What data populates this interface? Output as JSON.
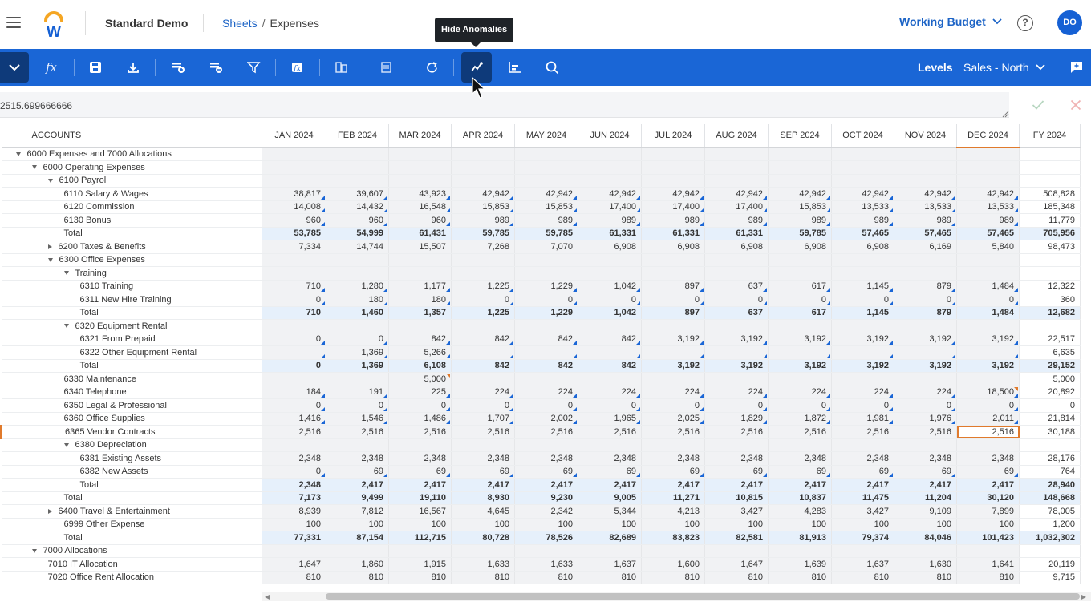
{
  "header": {
    "app_name": "Standard Demo",
    "breadcrumb_link": "Sheets",
    "breadcrumb_sep": "/",
    "breadcrumb_current": "Expenses",
    "tooltip": "Hide Anomalies",
    "budget": "Working Budget",
    "help": "?",
    "avatar": "DO"
  },
  "toolbar": {
    "fx_label": "fx",
    "levels_label": "Levels",
    "levels_value": "Sales - North",
    "active_button": "anomalies-icon"
  },
  "formula": {
    "value": "2515.699666666"
  },
  "grid": {
    "accounts_header": "ACCOUNTS",
    "months": [
      "JAN 2024",
      "FEB 2024",
      "MAR 2024",
      "APR 2024",
      "MAY 2024",
      "JUN 2024",
      "JUL 2024",
      "AUG 2024",
      "SEP 2024",
      "OCT 2024",
      "NOV 2024",
      "DEC 2024",
      "FY 2024"
    ],
    "rows": [
      {
        "label": "6000 Expenses and 7000 Allocations",
        "level": 0,
        "caret": "down",
        "values": []
      },
      {
        "label": "6000 Operating Expenses",
        "level": 1,
        "caret": "down",
        "values": []
      },
      {
        "label": "6100 Payroll",
        "level": 2,
        "caret": "down",
        "values": []
      },
      {
        "label": "6110 Salary & Wages",
        "level": 3,
        "values": [
          "38,817",
          "39,607",
          "43,923",
          "42,942",
          "42,942",
          "42,942",
          "42,942",
          "42,942",
          "42,942",
          "42,942",
          "42,942",
          "42,942",
          "508,828"
        ],
        "tri": true
      },
      {
        "label": "6120 Commission",
        "level": 3,
        "values": [
          "14,008",
          "14,432",
          "16,548",
          "15,853",
          "15,853",
          "17,400",
          "17,400",
          "17,400",
          "15,853",
          "13,533",
          "13,533",
          "13,533",
          "185,348"
        ],
        "tri": true
      },
      {
        "label": "6130 Bonus",
        "level": 3,
        "values": [
          "960",
          "960",
          "960",
          "989",
          "989",
          "989",
          "989",
          "989",
          "989",
          "989",
          "989",
          "989",
          "11,779"
        ],
        "tri": true
      },
      {
        "label": "Total",
        "level": 3,
        "total": true,
        "values": [
          "53,785",
          "54,999",
          "61,431",
          "59,785",
          "59,785",
          "61,331",
          "61,331",
          "61,331",
          "59,785",
          "57,465",
          "57,465",
          "57,465",
          "705,956"
        ]
      },
      {
        "label": "6200 Taxes & Benefits",
        "level": 2,
        "caret": "right",
        "values": [
          "7,334",
          "14,744",
          "15,507",
          "7,268",
          "7,070",
          "6,908",
          "6,908",
          "6,908",
          "6,908",
          "6,908",
          "6,169",
          "5,840",
          "98,473"
        ]
      },
      {
        "label": "6300 Office Expenses",
        "level": 2,
        "caret": "down",
        "values": []
      },
      {
        "label": "Training",
        "level": 3,
        "caret": "down",
        "values": []
      },
      {
        "label": "6310 Training",
        "level": 4,
        "values": [
          "710",
          "1,280",
          "1,177",
          "1,225",
          "1,229",
          "1,042",
          "897",
          "637",
          "617",
          "1,145",
          "879",
          "1,484",
          "12,322"
        ],
        "tri": true
      },
      {
        "label": "6311 New Hire Training",
        "level": 4,
        "values": [
          "0",
          "180",
          "180",
          "0",
          "0",
          "0",
          "0",
          "0",
          "0",
          "0",
          "0",
          "0",
          "360"
        ],
        "tri": true
      },
      {
        "label": "Total",
        "level": 4,
        "total": true,
        "values": [
          "710",
          "1,460",
          "1,357",
          "1,225",
          "1,229",
          "1,042",
          "897",
          "637",
          "617",
          "1,145",
          "879",
          "1,484",
          "12,682"
        ]
      },
      {
        "label": "6320 Equipment Rental",
        "level": 3,
        "caret": "down",
        "values": []
      },
      {
        "label": "6321 From Prepaid",
        "level": 4,
        "values": [
          "0",
          "0",
          "842",
          "842",
          "842",
          "842",
          "3,192",
          "3,192",
          "3,192",
          "3,192",
          "3,192",
          "3,192",
          "22,517"
        ],
        "tri": true
      },
      {
        "label": "6322 Other Equipment Rental",
        "level": 4,
        "values": [
          "",
          "1,369",
          "5,266",
          "",
          "",
          "",
          "",
          "",
          "",
          "",
          "",
          "",
          "6,635"
        ],
        "tri": true
      },
      {
        "label": "Total",
        "level": 4,
        "total": true,
        "values": [
          "0",
          "1,369",
          "6,108",
          "842",
          "842",
          "842",
          "3,192",
          "3,192",
          "3,192",
          "3,192",
          "3,192",
          "3,192",
          "29,152"
        ]
      },
      {
        "label": "6330 Maintenance",
        "level": 3,
        "values": [
          "",
          "",
          "5,000",
          "",
          "",
          "",
          "",
          "",
          "",
          "",
          "",
          "",
          "5,000"
        ],
        "orange": [
          2
        ]
      },
      {
        "label": "6340 Telephone",
        "level": 3,
        "values": [
          "184",
          "191",
          "225",
          "224",
          "224",
          "224",
          "224",
          "224",
          "224",
          "224",
          "224",
          "18,500",
          "20,892"
        ],
        "tri": true,
        "orange": [
          11
        ]
      },
      {
        "label": "6350 Legal & Professional",
        "level": 3,
        "values": [
          "0",
          "0",
          "0",
          "0",
          "0",
          "0",
          "0",
          "0",
          "0",
          "0",
          "0",
          "0",
          "0"
        ],
        "tri": true
      },
      {
        "label": "6360 Office Supplies",
        "level": 3,
        "values": [
          "1,416",
          "1,546",
          "1,486",
          "1,707",
          "2,002",
          "1,965",
          "2,025",
          "1,829",
          "1,872",
          "1,981",
          "1,976",
          "2,011",
          "21,814"
        ],
        "tri": true
      },
      {
        "label": "6365 Vendor Contracts",
        "level": 3,
        "highlight": true,
        "values": [
          "2,516",
          "2,516",
          "2,516",
          "2,516",
          "2,516",
          "2,516",
          "2,516",
          "2,516",
          "2,516",
          "2,516",
          "2,516",
          "2,516",
          "30,188"
        ]
      },
      {
        "label": "6380 Depreciation",
        "level": 3,
        "caret": "down",
        "values": []
      },
      {
        "label": "6381 Existing Assets",
        "level": 4,
        "values": [
          "2,348",
          "2,348",
          "2,348",
          "2,348",
          "2,348",
          "2,348",
          "2,348",
          "2,348",
          "2,348",
          "2,348",
          "2,348",
          "2,348",
          "28,176"
        ]
      },
      {
        "label": "6382 New Assets",
        "level": 4,
        "values": [
          "0",
          "69",
          "69",
          "69",
          "69",
          "69",
          "69",
          "69",
          "69",
          "69",
          "69",
          "69",
          "764"
        ],
        "tri": true
      },
      {
        "label": "Total",
        "level": 4,
        "total": true,
        "values": [
          "2,348",
          "2,417",
          "2,417",
          "2,417",
          "2,417",
          "2,417",
          "2,417",
          "2,417",
          "2,417",
          "2,417",
          "2,417",
          "2,417",
          "28,940"
        ]
      },
      {
        "label": "Total",
        "level": 3,
        "total": true,
        "values": [
          "7,173",
          "9,499",
          "19,110",
          "8,930",
          "9,230",
          "9,005",
          "11,271",
          "10,815",
          "10,837",
          "11,475",
          "11,204",
          "30,120",
          "148,668"
        ]
      },
      {
        "label": "6400 Travel & Entertainment",
        "level": 2,
        "caret": "right",
        "values": [
          "8,939",
          "7,812",
          "16,567",
          "4,645",
          "2,342",
          "5,344",
          "4,213",
          "3,427",
          "4,283",
          "3,427",
          "9,109",
          "7,899",
          "78,005"
        ]
      },
      {
        "label": "6999 Other Expense",
        "level": 3,
        "values": [
          "100",
          "100",
          "100",
          "100",
          "100",
          "100",
          "100",
          "100",
          "100",
          "100",
          "100",
          "100",
          "1,200"
        ]
      },
      {
        "label": "Total",
        "level": 3,
        "total": true,
        "values": [
          "77,331",
          "87,154",
          "112,715",
          "80,728",
          "78,526",
          "82,689",
          "83,823",
          "82,581",
          "81,913",
          "79,374",
          "84,046",
          "101,423",
          "1,032,302"
        ]
      },
      {
        "label": "7000 Allocations",
        "level": 1,
        "caret": "down",
        "values": []
      },
      {
        "label": "7010 IT Allocation",
        "level": 2,
        "values": [
          "1,647",
          "1,860",
          "1,915",
          "1,633",
          "1,633",
          "1,637",
          "1,600",
          "1,647",
          "1,639",
          "1,637",
          "1,630",
          "1,641",
          "20,119"
        ]
      },
      {
        "label": "7020 Office Rent Allocation",
        "level": 2,
        "values": [
          "810",
          "810",
          "810",
          "810",
          "810",
          "810",
          "810",
          "810",
          "810",
          "810",
          "810",
          "810",
          "9,715"
        ]
      }
    ]
  }
}
